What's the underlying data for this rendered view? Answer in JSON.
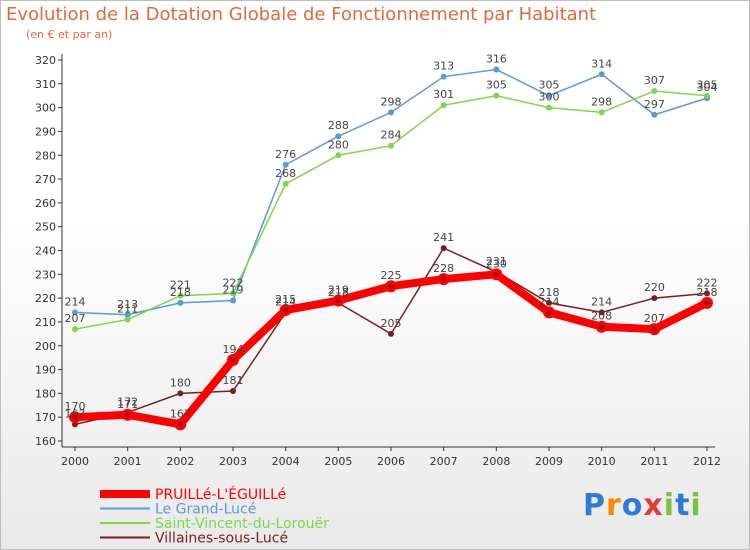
{
  "header": {
    "title": "Evolution de la Dotation Globale de Fonctionnement par Habitant",
    "subtitle": "(en € et par an)"
  },
  "logo": {
    "text": "Proxiti"
  },
  "chart_data": {
    "type": "line",
    "title": "Evolution de la Dotation Globale de Fonctionnement par Habitant",
    "subtitle": "(en € et par an)",
    "xlabel": "",
    "ylabel": "",
    "x": [
      "2000",
      "2001",
      "2002",
      "2003",
      "2004",
      "2005",
      "2006",
      "2007",
      "2008",
      "2009",
      "2010",
      "2011",
      "2012"
    ],
    "ylim": [
      160,
      320
    ],
    "yticks": [
      160,
      170,
      180,
      190,
      200,
      210,
      220,
      230,
      240,
      250,
      260,
      270,
      280,
      290,
      300,
      310,
      320
    ],
    "grid": false,
    "legend": "bottom-left",
    "series": [
      {
        "name": "PRUILLé-L'ÉGUILLé",
        "color": "#ff0000",
        "highlight": true,
        "values": [
          170,
          171,
          167,
          194,
          215,
          219,
          225,
          228,
          230,
          214,
          208,
          207,
          218
        ]
      },
      {
        "name": "Le Grand-Lucé",
        "color": "#5b9bd5",
        "values": [
          214,
          213,
          218,
          219,
          276,
          288,
          298,
          313,
          316,
          305,
          314,
          297,
          304
        ]
      },
      {
        "name": "Saint-Vincent-du-Lorouër",
        "color": "#7fd64a",
        "values": [
          207,
          211,
          221,
          222,
          268,
          280,
          284,
          301,
          305,
          300,
          298,
          307,
          305
        ]
      },
      {
        "name": "Villaines-sous-Lucé",
        "color": "#7a1f1f",
        "values": [
          167,
          172,
          180,
          181,
          214,
          218,
          205,
          241,
          231,
          218,
          214,
          220,
          222
        ]
      }
    ]
  }
}
